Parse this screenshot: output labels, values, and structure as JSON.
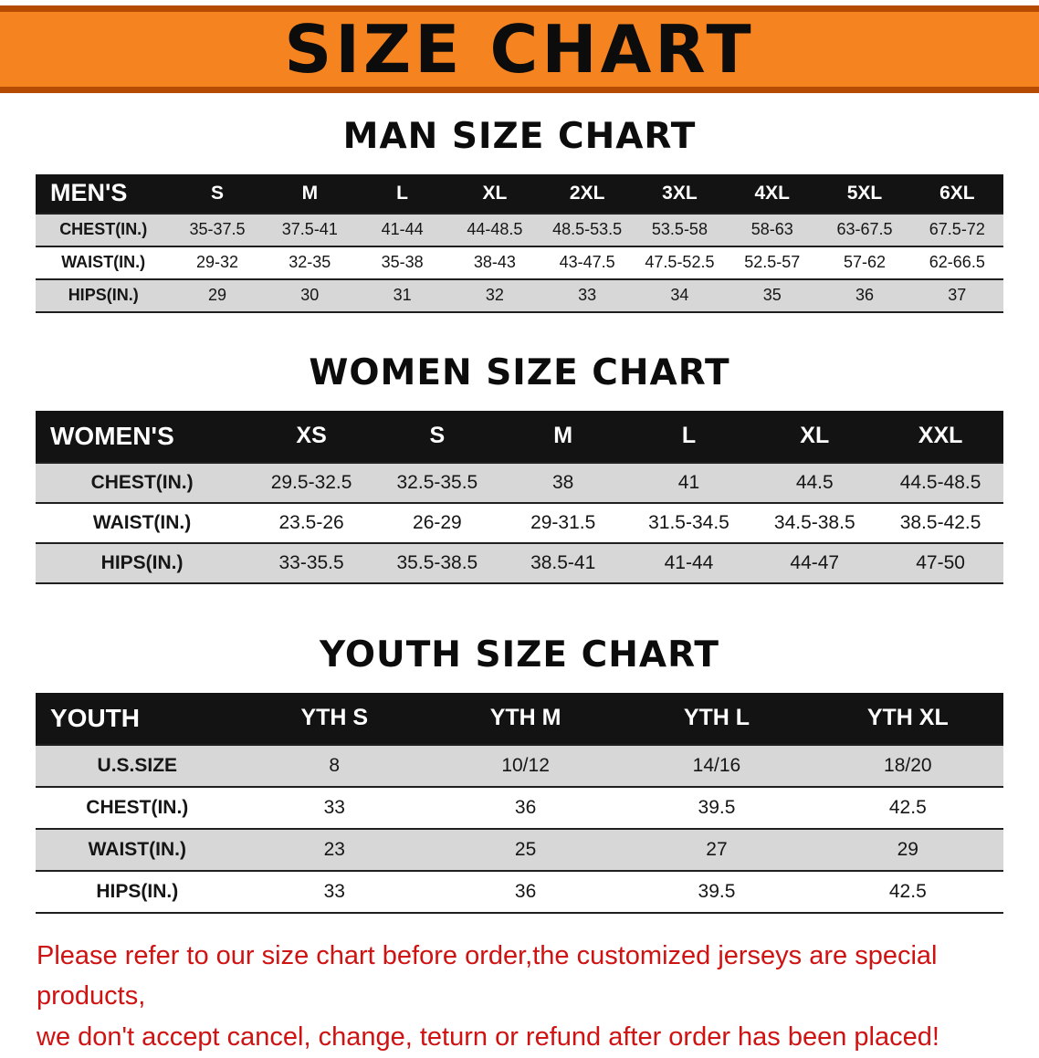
{
  "banner": {
    "title": "SIZE CHART"
  },
  "tables": [
    {
      "heading": "MAN SIZE CHART",
      "label_header": "MEN'S",
      "columns": [
        "S",
        "M",
        "L",
        "XL",
        "2XL",
        "3XL",
        "4XL",
        "5XL",
        "6XL"
      ],
      "rows": [
        {
          "label": "CHEST(IN.)",
          "values": [
            "35-37.5",
            "37.5-41",
            "41-44",
            "44-48.5",
            "48.5-53.5",
            "53.5-58",
            "58-63",
            "63-67.5",
            "67.5-72"
          ]
        },
        {
          "label": "WAIST(IN.)",
          "values": [
            "29-32",
            "32-35",
            "35-38",
            "38-43",
            "43-47.5",
            "47.5-52.5",
            "52.5-57",
            "57-62",
            "62-66.5"
          ]
        },
        {
          "label": "HIPS(IN.)",
          "values": [
            "29",
            "30",
            "31",
            "32",
            "33",
            "34",
            "35",
            "36",
            "37"
          ]
        }
      ]
    },
    {
      "heading": "WOMEN SIZE CHART",
      "label_header": "WOMEN'S",
      "columns": [
        "XS",
        "S",
        "M",
        "L",
        "XL",
        "XXL"
      ],
      "rows": [
        {
          "label": "CHEST(IN.)",
          "values": [
            "29.5-32.5",
            "32.5-35.5",
            "38",
            "41",
            "44.5",
            "44.5-48.5"
          ]
        },
        {
          "label": "WAIST(IN.)",
          "values": [
            "23.5-26",
            "26-29",
            "29-31.5",
            "31.5-34.5",
            "34.5-38.5",
            "38.5-42.5"
          ]
        },
        {
          "label": "HIPS(IN.)",
          "values": [
            "33-35.5",
            "35.5-38.5",
            "38.5-41",
            "41-44",
            "44-47",
            "47-50"
          ]
        }
      ]
    },
    {
      "heading": "YOUTH SIZE CHART",
      "label_header": "YOUTH",
      "columns": [
        "YTH S",
        "YTH M",
        "YTH L",
        "YTH XL"
      ],
      "rows": [
        {
          "label": "U.S.SIZE",
          "values": [
            "8",
            "10/12",
            "14/16",
            "18/20"
          ]
        },
        {
          "label": "CHEST(IN.)",
          "values": [
            "33",
            "36",
            "39.5",
            "42.5"
          ]
        },
        {
          "label": "WAIST(IN.)",
          "values": [
            "23",
            "25",
            "27",
            "29"
          ]
        },
        {
          "label": "HIPS(IN.)",
          "values": [
            "33",
            "36",
            "39.5",
            "42.5"
          ]
        }
      ]
    }
  ],
  "disclaimer": {
    "line1": "Please refer to our size chart before order,the customized jerseys are special products,",
    "line2": "we don't accept cancel, change, teturn or refund after order has been placed!"
  },
  "colors": {
    "banner_bg": "#f5831f",
    "banner_edge": "#b54b00",
    "header_bg": "#131313",
    "row_alt_bg": "#d7d7d7",
    "disclaimer_color": "#cf1212"
  }
}
